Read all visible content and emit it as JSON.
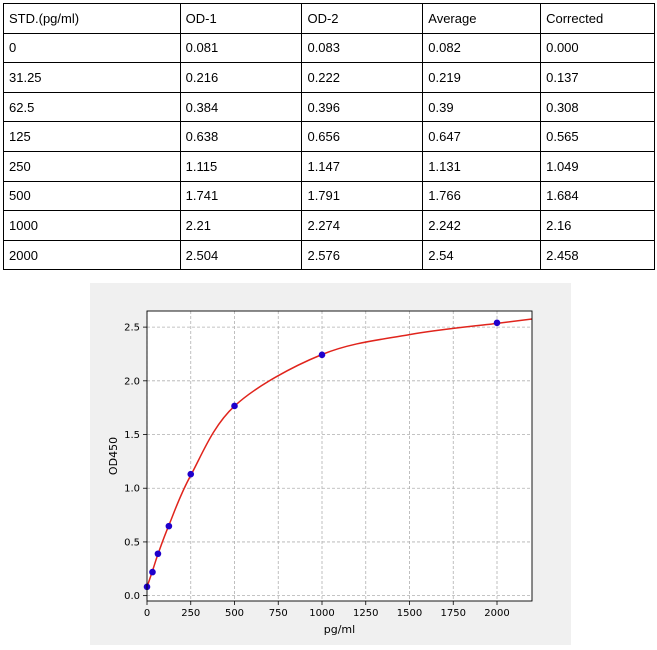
{
  "table": {
    "headers": [
      "STD.(pg/ml)",
      "OD-1",
      "OD-2",
      "Average",
      "Corrected"
    ],
    "rows": [
      [
        "0",
        "0.081",
        "0.083",
        "0.082",
        "0.000"
      ],
      [
        "31.25",
        "0.216",
        "0.222",
        "0.219",
        "0.137"
      ],
      [
        "62.5",
        "0.384",
        "0.396",
        "0.39",
        "0.308"
      ],
      [
        "125",
        "0.638",
        "0.656",
        "0.647",
        "0.565"
      ],
      [
        "250",
        "1.115",
        "1.147",
        "1.131",
        "1.049"
      ],
      [
        "500",
        "1.741",
        "1.791",
        "1.766",
        "1.684"
      ],
      [
        "1000",
        "2.21",
        "2.274",
        "2.242",
        "2.16"
      ],
      [
        "2000",
        "2.504",
        "2.576",
        "2.54",
        "2.458"
      ]
    ]
  },
  "chart_data": {
    "type": "scatter",
    "title": "",
    "xlabel": "pg/ml",
    "ylabel": "OD450",
    "xlim": [
      0,
      2200
    ],
    "ylim": [
      -0.05,
      2.65
    ],
    "xticks": [
      0,
      250,
      500,
      750,
      1000,
      1250,
      1500,
      1750,
      2000
    ],
    "xtick_labels": [
      "0",
      "250",
      "500",
      "750",
      "1000",
      "1250",
      "1500",
      "1750",
      "2000"
    ],
    "yticks": [
      0.0,
      0.5,
      1.0,
      1.5,
      2.0,
      2.5
    ],
    "ytick_labels": [
      "0.0",
      "0.5",
      "1.0",
      "1.5",
      "2.0",
      "2.5"
    ],
    "grid": true,
    "series": [
      {
        "kind": "points",
        "color": "#1f00cc",
        "x": [
          0,
          31.25,
          62.5,
          125,
          250,
          500,
          1000,
          2000
        ],
        "y": [
          0.082,
          0.219,
          0.39,
          0.647,
          1.131,
          1.766,
          2.242,
          2.54
        ]
      },
      {
        "kind": "fit-curve",
        "color": "#e0241c",
        "x": [
          0,
          31.25,
          62.5,
          125,
          250,
          500,
          1000,
          1500,
          2000,
          2200
        ],
        "y": [
          0.08,
          0.23,
          0.385,
          0.655,
          1.12,
          1.765,
          2.245,
          2.43,
          2.535,
          2.575
        ]
      }
    ]
  }
}
